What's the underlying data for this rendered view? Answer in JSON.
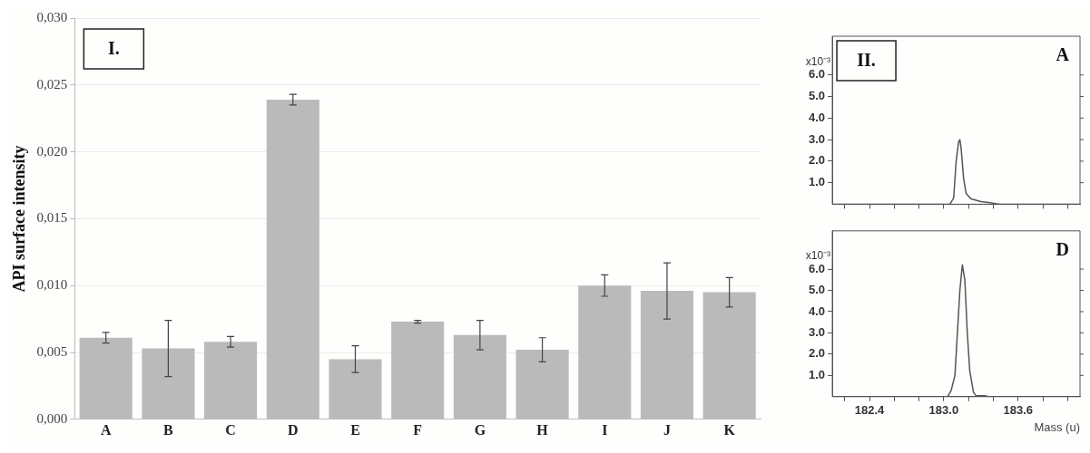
{
  "chart_data": [
    {
      "type": "bar",
      "ylabel": "API surface intensity",
      "annotations": [
        "I."
      ],
      "categories": [
        "A",
        "B",
        "C",
        "D",
        "E",
        "F",
        "G",
        "H",
        "I",
        "J",
        "K"
      ],
      "series": [
        {
          "color": "#bababa",
          "values": [
            0.0061,
            0.0053,
            0.0058,
            0.0239,
            0.0045,
            0.0073,
            0.0063,
            0.0052,
            0.01,
            0.0096,
            0.0095
          ],
          "errors": [
            0.0004,
            0.0021,
            0.0004,
            0.0004,
            0.001,
            0.0001,
            0.0011,
            0.0009,
            0.0008,
            0.0021,
            0.0011
          ]
        }
      ],
      "ylim": [
        0,
        0.03
      ],
      "yticks": [
        {
          "value": 0,
          "label": "0,000"
        },
        {
          "value": 0.005,
          "label": "0,005"
        },
        {
          "value": 0.01,
          "label": "0,010"
        },
        {
          "value": 0.015,
          "label": "0,015"
        },
        {
          "value": 0.02,
          "label": "0,020"
        },
        {
          "value": 0.025,
          "label": "0,025"
        },
        {
          "value": 0.03,
          "label": "0,030"
        }
      ],
      "grid": "y",
      "legend": false
    },
    {
      "type": "line",
      "ylabel": "x10⁻³",
      "annotations": [
        "II.",
        "A"
      ],
      "series": [
        {
          "color": "#555555",
          "x": [
            182.1,
            183.05,
            183.08,
            183.1,
            183.12,
            183.13,
            183.14,
            183.16,
            183.18,
            183.22,
            183.3,
            183.36,
            183.45,
            184.1
          ],
          "values": [
            0,
            0,
            0.3,
            2.0,
            2.9,
            3.0,
            2.6,
            1.2,
            0.5,
            0.25,
            0.12,
            0.08,
            0,
            0
          ]
        }
      ],
      "xlim": [
        182.1,
        184.1
      ],
      "ylim": [
        0,
        7.8
      ],
      "xticks": [
        {
          "value": 182.2,
          "label": null
        },
        {
          "value": 182.4,
          "label": null
        },
        {
          "value": 182.6,
          "label": null
        },
        {
          "value": 182.8,
          "label": null
        },
        {
          "value": 183.0,
          "label": null
        },
        {
          "value": 183.2,
          "label": null
        },
        {
          "value": 183.4,
          "label": null
        },
        {
          "value": 183.6,
          "label": null
        },
        {
          "value": 183.8,
          "label": null
        },
        {
          "value": 184.0,
          "label": null
        }
      ],
      "yticks": [
        {
          "value": 1,
          "label": "1.0"
        },
        {
          "value": 2,
          "label": "2.0"
        },
        {
          "value": 3,
          "label": "3.0"
        },
        {
          "value": 4,
          "label": "4.0"
        },
        {
          "value": 5,
          "label": "5.0"
        },
        {
          "value": 6,
          "label": "6.0"
        }
      ],
      "tick_labels": "y",
      "grid": false,
      "legend": false,
      "marker": "none",
      "line_style": "solid"
    },
    {
      "type": "line",
      "ylabel": "x10⁻³",
      "xlabel": "Mass (u)",
      "annotations": [
        "D"
      ],
      "series": [
        {
          "color": "#555555",
          "x": [
            182.1,
            183.03,
            183.06,
            183.09,
            183.11,
            183.13,
            183.15,
            183.17,
            183.19,
            183.21,
            183.24,
            183.26,
            183.33,
            183.36,
            184.1
          ],
          "values": [
            0,
            0,
            0.3,
            1.0,
            3.0,
            5.0,
            6.2,
            5.5,
            3.0,
            1.2,
            0.2,
            0.05,
            0.05,
            0,
            0
          ]
        }
      ],
      "xlim": [
        182.1,
        184.1
      ],
      "ylim": [
        0,
        7.8
      ],
      "xticks": [
        {
          "value": 182.2,
          "label": null
        },
        {
          "value": 182.4,
          "label": "182.4"
        },
        {
          "value": 182.6,
          "label": null
        },
        {
          "value": 182.8,
          "label": null
        },
        {
          "value": 183.0,
          "label": "183.0"
        },
        {
          "value": 183.2,
          "label": null
        },
        {
          "value": 183.4,
          "label": null
        },
        {
          "value": 183.6,
          "label": "183.6"
        },
        {
          "value": 183.8,
          "label": null
        },
        {
          "value": 184.0,
          "label": null
        }
      ],
      "yticks": [
        {
          "value": 1,
          "label": "1.0"
        },
        {
          "value": 2,
          "label": "2.0"
        },
        {
          "value": 3,
          "label": "3.0"
        },
        {
          "value": 4,
          "label": "4.0"
        },
        {
          "value": 5,
          "label": "5.0"
        },
        {
          "value": 6,
          "label": "6.0"
        }
      ],
      "grid": false,
      "legend": false,
      "marker": "none",
      "line_style": "solid"
    }
  ]
}
